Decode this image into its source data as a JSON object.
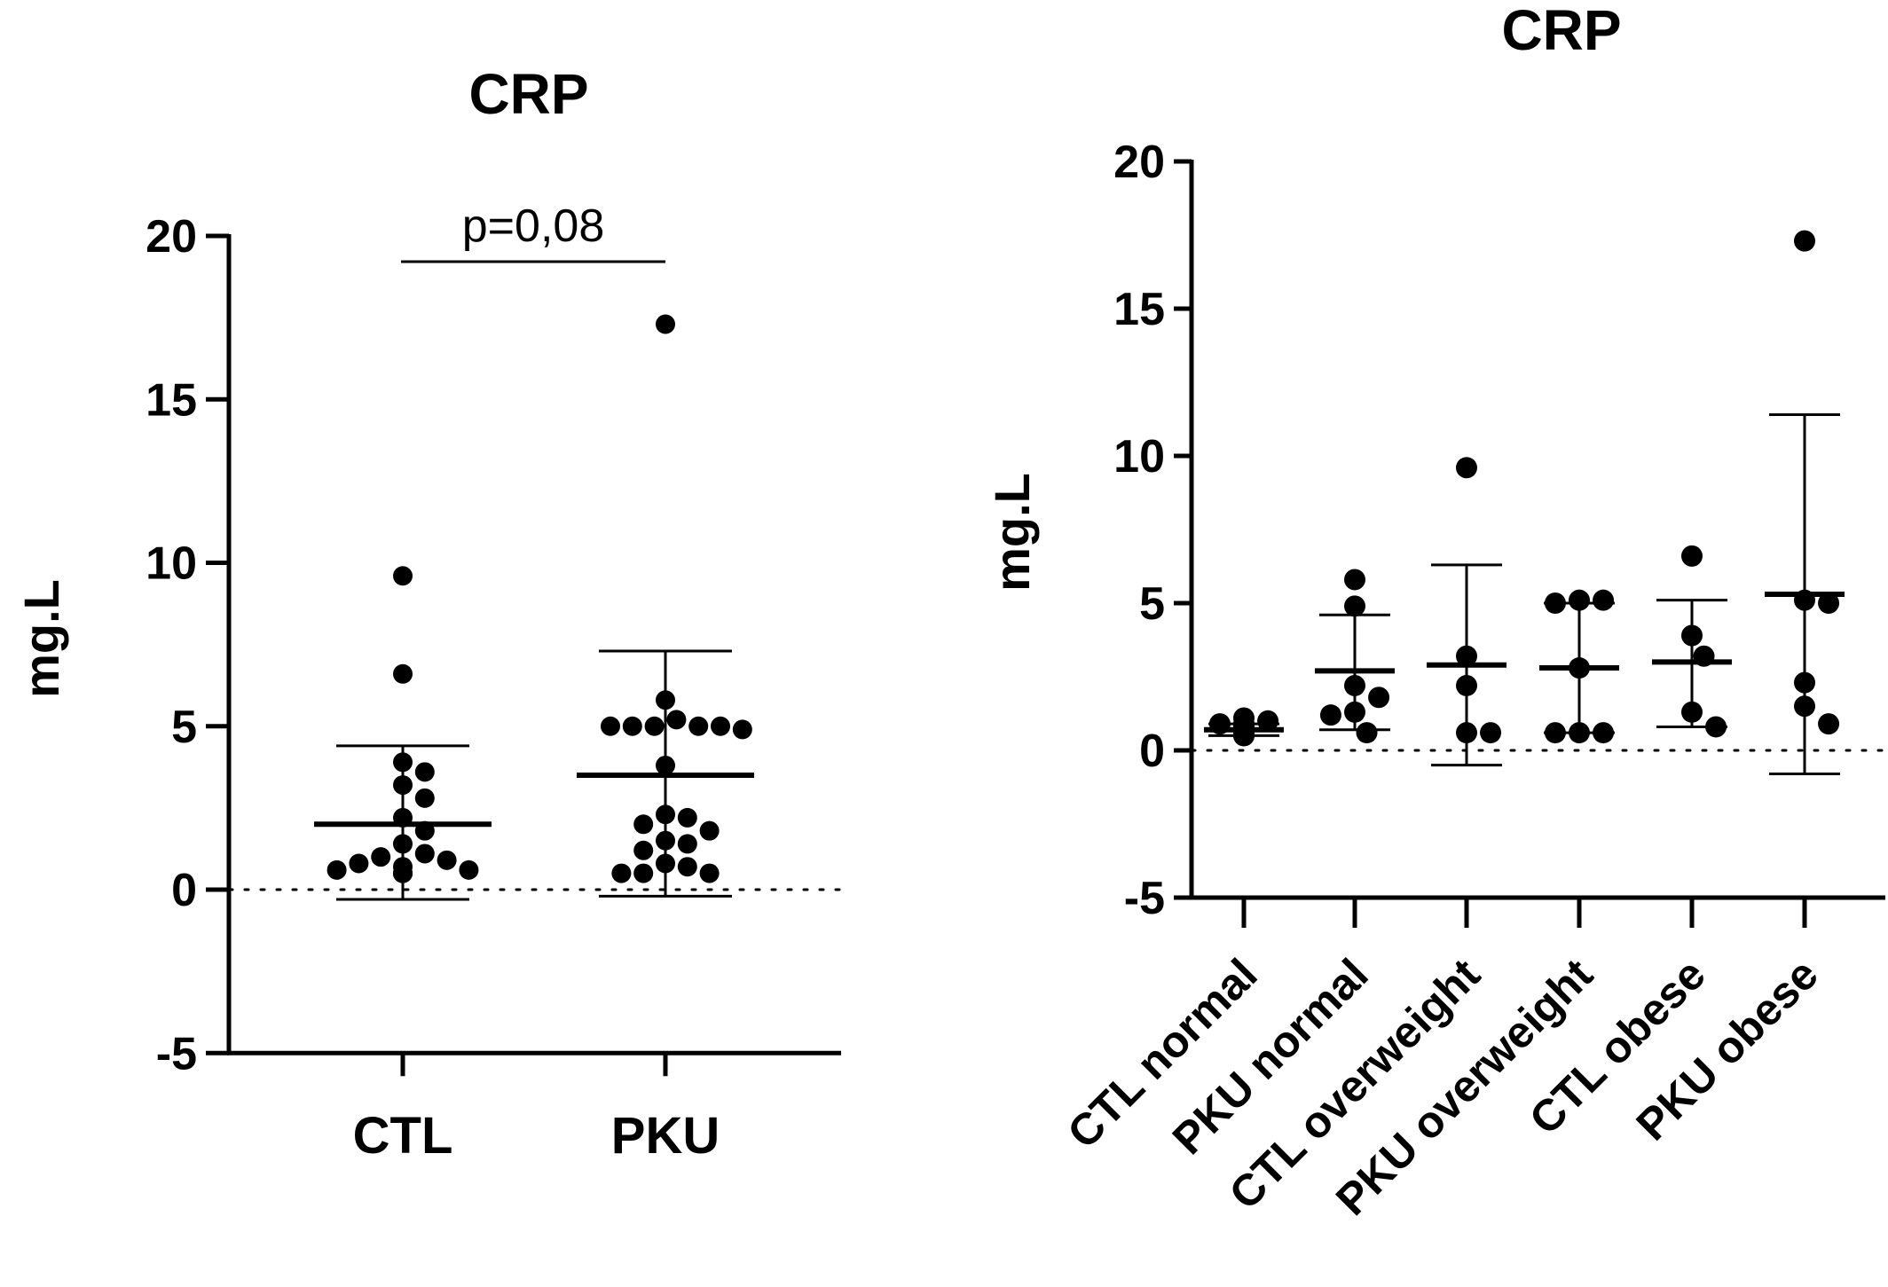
{
  "chart_data": [
    {
      "type": "scatter",
      "title": "CRP",
      "ylabel": "mg.L",
      "xlabel": "",
      "ylim": [
        -5,
        20
      ],
      "yticks": [
        "-5",
        "0",
        "5",
        "10",
        "15",
        "20"
      ],
      "categories": [
        "CTL",
        "PKU"
      ],
      "annotation": "p=0,08",
      "reference_line": 0,
      "groups": [
        {
          "category": "CTL",
          "mean": 2.0,
          "sd_upper": 4.4,
          "sd_lower": -0.3,
          "points": [
            9.6,
            6.6,
            3.9,
            3.6,
            3.2,
            2.8,
            2.2,
            1.8,
            1.4,
            1.1,
            1.0,
            0.9,
            0.8,
            0.7,
            0.6,
            0.6,
            0.5,
            0.5,
            0.5,
            0.5
          ]
        },
        {
          "category": "PKU",
          "mean": 3.5,
          "sd_upper": 7.3,
          "sd_lower": -0.2,
          "points": [
            17.3,
            5.8,
            5.2,
            5.0,
            5.0,
            5.0,
            5.0,
            5.0,
            4.9,
            3.8,
            2.3,
            2.2,
            2.0,
            1.8,
            1.5,
            1.4,
            1.2,
            0.8,
            0.7,
            0.5,
            0.5,
            0.5
          ]
        }
      ]
    },
    {
      "type": "scatter",
      "title": "CRP",
      "ylabel": "mg.L",
      "xlabel": "",
      "ylim": [
        -5,
        20
      ],
      "yticks": [
        "-5",
        "0",
        "5",
        "10",
        "15",
        "20"
      ],
      "categories": [
        "CTL normal",
        "PKU normal",
        "CTL overweight",
        "PKU overweight",
        "CTL obese",
        "PKU obese"
      ],
      "reference_line": 0,
      "groups": [
        {
          "category": "CTL normal",
          "mean": 0.7,
          "sd_upper": 0.9,
          "sd_lower": 0.5,
          "points": [
            1.1,
            1.0,
            0.9,
            0.9,
            0.8,
            0.8,
            0.7,
            0.7,
            0.6,
            0.6,
            0.6,
            0.5,
            0.5
          ]
        },
        {
          "category": "PKU normal",
          "mean": 2.7,
          "sd_upper": 4.6,
          "sd_lower": 0.7,
          "points": [
            5.8,
            4.9,
            2.2,
            1.8,
            1.3,
            1.2,
            0.6
          ]
        },
        {
          "category": "CTL overweight",
          "mean": 2.9,
          "sd_upper": 6.3,
          "sd_lower": -0.5,
          "points": [
            9.6,
            3.2,
            2.2,
            0.6,
            0.6
          ]
        },
        {
          "category": "PKU overweight",
          "mean": 2.8,
          "sd_upper": 5.0,
          "sd_lower": 0.6,
          "points": [
            5.1,
            5.1,
            5.0,
            2.8,
            0.6,
            0.6,
            0.6
          ]
        },
        {
          "category": "CTL obese",
          "mean": 3.0,
          "sd_upper": 5.1,
          "sd_lower": 0.8,
          "points": [
            6.6,
            3.9,
            3.2,
            1.3,
            0.8
          ]
        },
        {
          "category": "PKU obese",
          "mean": 5.3,
          "sd_upper": 11.4,
          "sd_lower": -0.8,
          "points": [
            17.3,
            5.1,
            5.0,
            2.3,
            1.5,
            0.9
          ]
        }
      ]
    }
  ]
}
